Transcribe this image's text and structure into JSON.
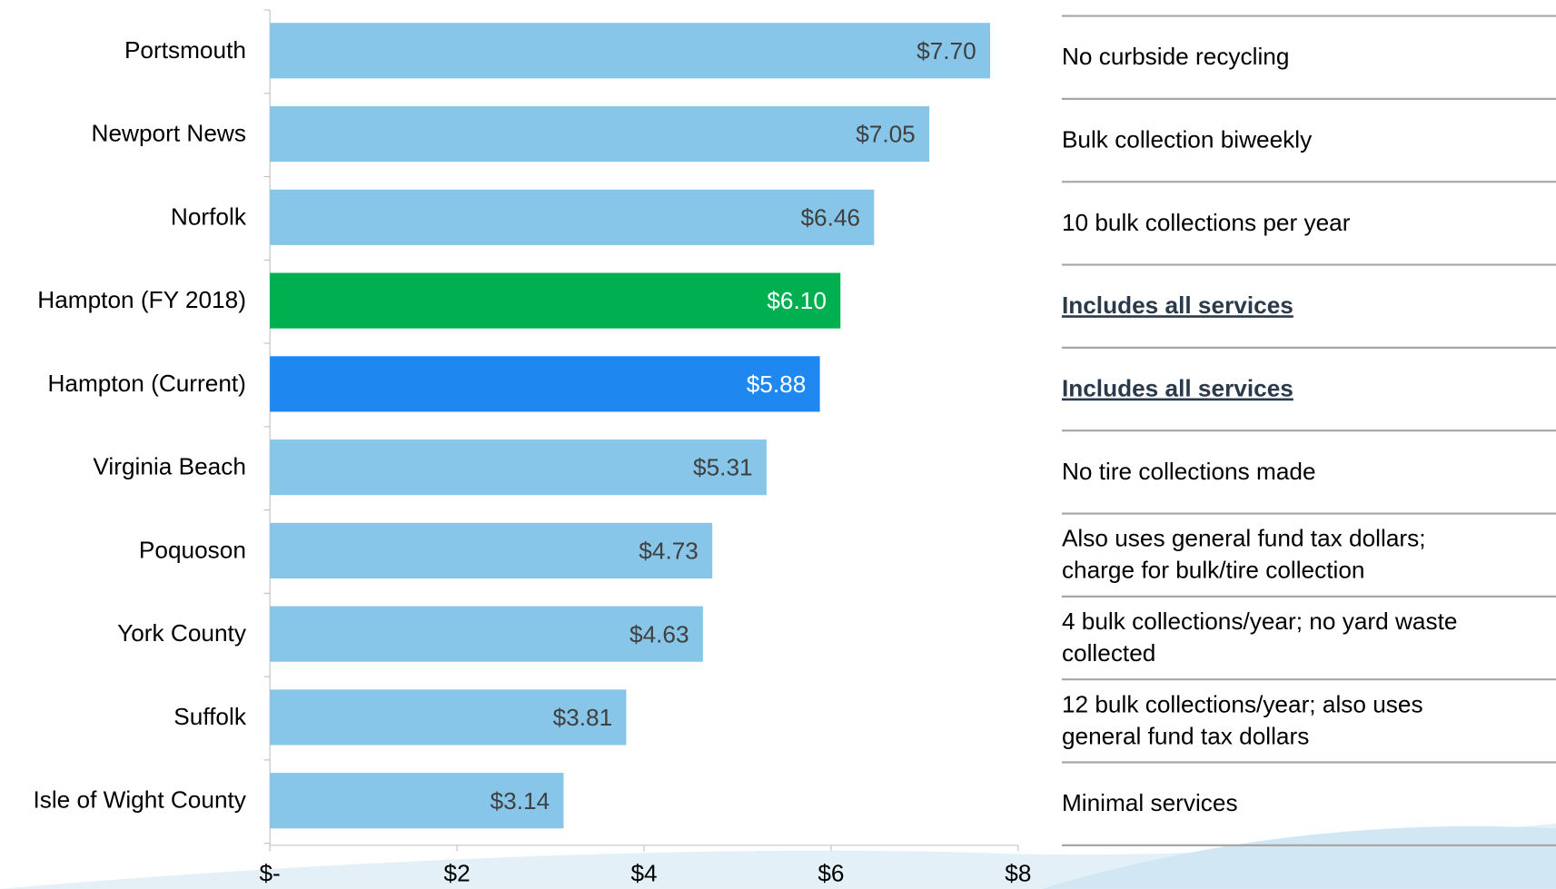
{
  "chart_data": {
    "type": "bar",
    "orientation": "horizontal",
    "categories": [
      "Portsmouth",
      "Newport News",
      "Norfolk",
      "Hampton (FY 2018)",
      "Hampton (Current)",
      "Virginia Beach",
      "Poquoson",
      "York County",
      "Suffolk",
      "Isle of Wight County"
    ],
    "values": [
      7.7,
      7.05,
      6.46,
      6.1,
      5.88,
      5.31,
      4.73,
      4.63,
      3.81,
      3.14
    ],
    "value_labels": [
      "$7.70",
      "$7.05",
      "$6.46",
      "$6.10",
      "$5.88",
      "$5.31",
      "$4.73",
      "$4.63",
      "$3.81",
      "$3.14"
    ],
    "colors": [
      "#87c6e8",
      "#87c6e8",
      "#87c6e8",
      "#00b050",
      "#1e88f0",
      "#87c6e8",
      "#87c6e8",
      "#87c6e8",
      "#87c6e8",
      "#87c6e8"
    ],
    "label_colors": [
      "#404040",
      "#404040",
      "#404040",
      "#ffffff",
      "#ffffff",
      "#404040",
      "#404040",
      "#404040",
      "#404040",
      "#404040"
    ],
    "xlim": [
      0,
      8
    ],
    "xticks": [
      {
        "value": 0,
        "label": "$-"
      },
      {
        "value": 2,
        "label": "$2"
      },
      {
        "value": 4,
        "label": "$4"
      },
      {
        "value": 6,
        "label": "$6"
      },
      {
        "value": 8,
        "label": "$8"
      }
    ],
    "notes": [
      {
        "lines": [
          "No curbside recycling"
        ],
        "bold": false
      },
      {
        "lines": [
          "Bulk collection biweekly"
        ],
        "bold": false
      },
      {
        "lines": [
          "10 bulk collections per year"
        ],
        "bold": false
      },
      {
        "lines": [
          "Includes all services"
        ],
        "bold": true
      },
      {
        "lines": [
          "Includes all services"
        ],
        "bold": true
      },
      {
        "lines": [
          "No tire collections made"
        ],
        "bold": false
      },
      {
        "lines": [
          "Also uses general fund tax dollars;",
          "charge for bulk/tire collection"
        ],
        "bold": false
      },
      {
        "lines": [
          "4 bulk collections/year; no yard waste",
          "collected"
        ],
        "bold": false
      },
      {
        "lines": [
          "12 bulk collections/year; also uses",
          "general fund tax dollars"
        ],
        "bold": false
      },
      {
        "lines": [
          "Minimal services"
        ],
        "bold": false
      }
    ]
  }
}
